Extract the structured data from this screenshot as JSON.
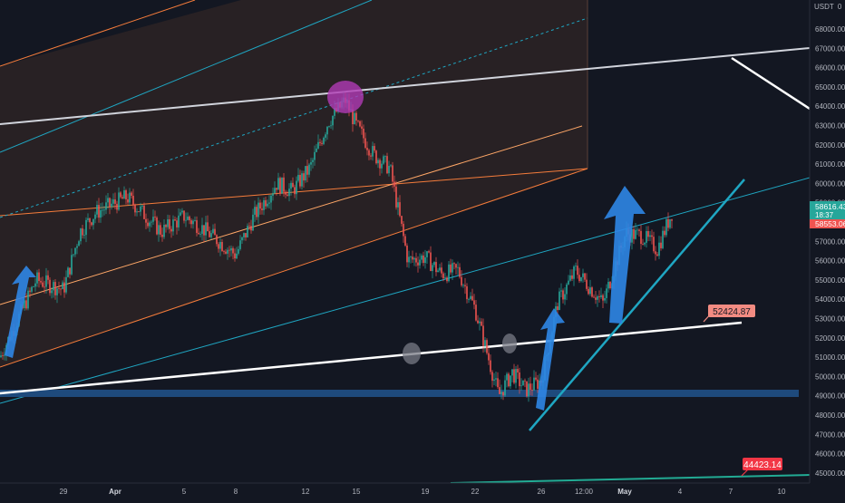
{
  "header": {
    "currency_label": "USDT",
    "scale_mode": "0"
  },
  "price_axis": {
    "ticks": [
      "68000.00",
      "67000.00",
      "66000.00",
      "65000.00",
      "64000.00",
      "63000.00",
      "62000.00",
      "61000.00",
      "60000.00",
      "59000.00",
      "57000.00",
      "56000.00",
      "55000.00",
      "54000.00",
      "53000.00",
      "52000.00",
      "51000.00",
      "50000.00",
      "49000.00",
      "48000.00",
      "47000.00",
      "46000.00",
      "45000.00"
    ],
    "tick_values": [
      68000,
      67000,
      66000,
      65000,
      64000,
      63000,
      62000,
      61000,
      60000,
      59000,
      57000,
      56000,
      55000,
      54000,
      53000,
      52000,
      51000,
      50000,
      49000,
      48000,
      47000,
      46000,
      45000
    ],
    "current_price": "58616.43",
    "countdown": "18:37",
    "previous_price": "58553.06",
    "current_color": "#26a69a",
    "previous_color": "#ef5350"
  },
  "time_axis": {
    "ticks": [
      "29",
      "Apr",
      "5",
      "8",
      "12",
      "15",
      "19",
      "22",
      "26",
      "12:00",
      "May",
      "4",
      "7",
      "10"
    ],
    "bold_ticks": [
      "Apr",
      "May"
    ]
  },
  "annotations": {
    "level_52k": "52424.87",
    "level_44k": "44423.14",
    "level_52k_color": "#f28b82",
    "level_44k_color": "#f23645"
  },
  "colors": {
    "background": "#131722",
    "up_candle": "#26a69a",
    "down_candle": "#ef5350",
    "channel_fill": "#3a2a26",
    "orange_line": "#f57c3b",
    "peach_line": "#ffa767",
    "teal_line": "#1fa6c2",
    "white_line": "#ffffff",
    "support_band": "#1e4a7c",
    "arrow_blue": "#2f86e6",
    "highlight_purple": "#b03bb5",
    "grey_marker": "#787b86"
  },
  "chart_data": {
    "type": "candlestick",
    "x_range": [
      "Mar 26",
      "May 11"
    ],
    "ylim": [
      44500,
      69000
    ],
    "grid": false,
    "support_band": [
      48800,
      49150
    ],
    "horizontal_levels": [
      52424.87,
      44423.14
    ],
    "last_price": 58616.43,
    "previous_close": 58553.06,
    "candles_close_path": [
      {
        "x": "Mar 26",
        "y": 51000
      },
      {
        "x": "Mar 27",
        "y": 52500
      },
      {
        "x": "Mar 28",
        "y": 55000
      },
      {
        "x": "Mar 29",
        "y": 54500
      },
      {
        "x": "Mar 30",
        "y": 57500
      },
      {
        "x": "Mar 31",
        "y": 58500
      },
      {
        "x": "Apr 2",
        "y": 59300
      },
      {
        "x": "Apr 4",
        "y": 57500
      },
      {
        "x": "Apr 5",
        "y": 58300
      },
      {
        "x": "Apr 6",
        "y": 57800
      },
      {
        "x": "Apr 8",
        "y": 56300
      },
      {
        "x": "Apr 9",
        "y": 58300
      },
      {
        "x": "Apr 10",
        "y": 60000
      },
      {
        "x": "Apr 11",
        "y": 59600
      },
      {
        "x": "Apr 12",
        "y": 60800
      },
      {
        "x": "Apr 13",
        "y": 63200
      },
      {
        "x": "Apr 14",
        "y": 64300
      },
      {
        "x": "Apr 15",
        "y": 63000
      },
      {
        "x": "Apr 16",
        "y": 61500
      },
      {
        "x": "Apr 17",
        "y": 60800
      },
      {
        "x": "Apr 18",
        "y": 56000
      },
      {
        "x": "Apr 19",
        "y": 56200
      },
      {
        "x": "Apr 20",
        "y": 55300
      },
      {
        "x": "Apr 21",
        "y": 55500
      },
      {
        "x": "Apr 22",
        "y": 53500
      },
      {
        "x": "Apr 23",
        "y": 49000
      },
      {
        "x": "Apr 24",
        "y": 50200
      },
      {
        "x": "Apr 25",
        "y": 49300
      },
      {
        "x": "Apr 26",
        "y": 49800
      },
      {
        "x": "Apr 27",
        "y": 53800
      },
      {
        "x": "Apr 28",
        "y": 55500
      },
      {
        "x": "Apr 29",
        "y": 53800
      },
      {
        "x": "Apr 30",
        "y": 57400
      },
      {
        "x": "May 1",
        "y": 57300
      },
      {
        "x": "May 2",
        "y": 56600
      },
      {
        "x": "May 3",
        "y": 58600
      }
    ]
  }
}
